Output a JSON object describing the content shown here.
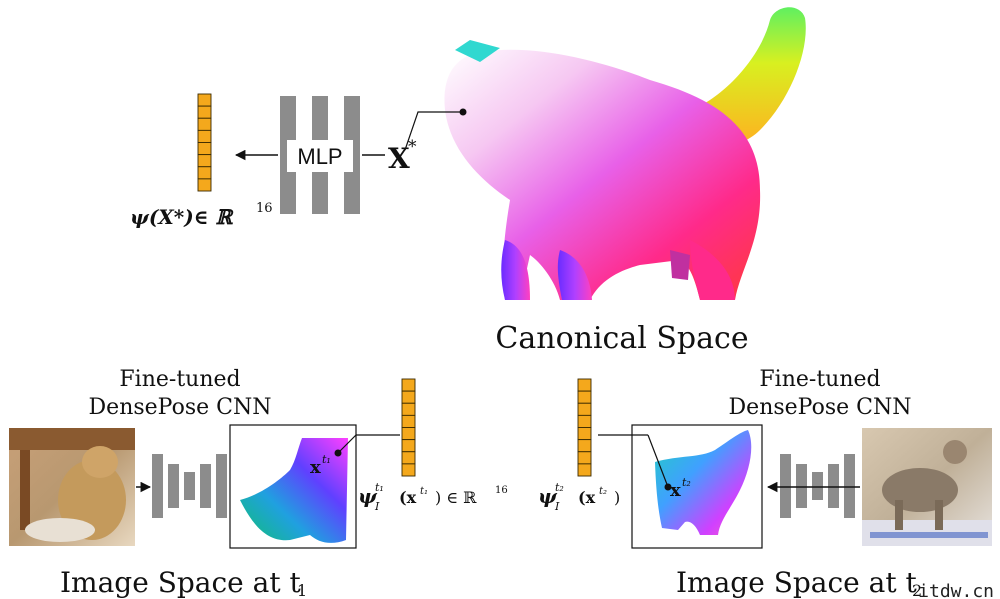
{
  "canonical": {
    "label": "Canonical Space",
    "point_label": "X",
    "point_sup": "*",
    "mlp_label": "MLP",
    "embedding_label": "ψ(X*)∈ ℝ",
    "embedding_sup": "16"
  },
  "left_panel": {
    "cnn_label_line1": "Fine-tuned",
    "cnn_label_line2": "DensePose CNN",
    "point_label": "x",
    "point_sup": "t₁",
    "embedding_label": "ψ",
    "embedding_sub": "I",
    "embedding_sup": "t₁",
    "embedding_arg": "(x",
    "embedding_arg_sup": "t₁",
    "embedding_tail": ") ∈ ℝ",
    "embedding_tail_sup": "16",
    "caption": "Image Space at t",
    "caption_sub": "1"
  },
  "right_panel": {
    "cnn_label_line1": "Fine-tuned",
    "cnn_label_line2": "DensePose CNN",
    "point_label": "x",
    "point_sup": "t₂",
    "embedding_label": "ψ",
    "embedding_sub": "I",
    "embedding_sup": "t₂",
    "embedding_arg": "(x",
    "embedding_arg_sup": "t₂",
    "embedding_tail": ")",
    "caption": "Image Space at t",
    "caption_sub": "2"
  },
  "watermark": "itdw.cn",
  "colors": {
    "embedding_fill": "#f4a81c",
    "embedding_stroke": "#3a2a00",
    "layer_gray": "#8c8c8c"
  }
}
